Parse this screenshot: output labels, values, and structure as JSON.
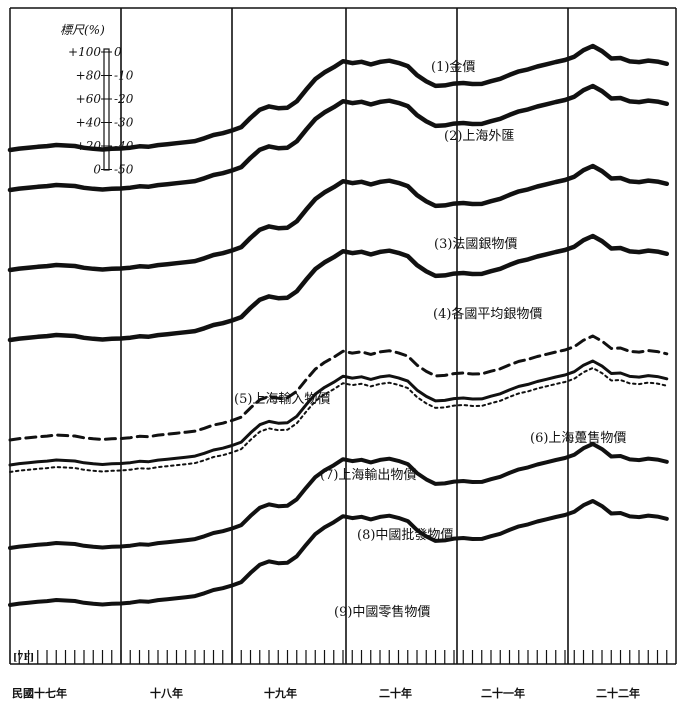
{
  "chart_data": {
    "type": "line",
    "scale": {
      "title": "標尺(%)",
      "left_ticks": [
        "+100",
        "+80",
        "+60",
        "+40",
        "+20",
        "0"
      ],
      "right_ticks": [
        "0",
        "-10",
        "-20",
        "-30",
        "-40",
        "-50"
      ]
    },
    "year_labels": [
      "民國十七年",
      "十八年",
      "十九年",
      "二十年",
      "二十一年",
      "二十二年"
    ],
    "corner_label": "[7F]",
    "x": [
      0,
      1,
      2,
      3,
      4,
      5,
      6,
      7,
      8,
      9,
      10,
      11,
      12,
      13,
      14,
      15,
      16,
      17,
      18,
      19,
      20,
      21,
      22,
      23,
      24,
      25,
      26,
      27,
      28,
      29,
      30,
      31,
      32,
      33,
      34,
      35,
      36,
      37,
      38,
      39,
      40,
      41,
      42,
      43,
      44,
      45,
      46,
      47,
      48,
      49,
      50,
      51,
      52,
      53,
      54,
      55,
      56,
      57,
      58,
      59,
      60,
      61,
      62,
      63,
      64,
      65,
      66,
      67,
      68,
      69,
      70,
      71
    ],
    "series": [
      {
        "name": "(1)金價",
        "style": "solid",
        "values": [
          0.0,
          1.3,
          2.0,
          2.9,
          3.6,
          4.6,
          4.1,
          3.7,
          2.0,
          1.1,
          0.5,
          1.1,
          1.4,
          2.1,
          3.4,
          3.0,
          4.5,
          5.3,
          6.2,
          7.2,
          8.2,
          10.7,
          13.8,
          15.4,
          17.9,
          21.0,
          29.5,
          37.0,
          40.0,
          38.4,
          38.8,
          44.7,
          55.2,
          65.1,
          71.3,
          76.0,
          81.5,
          79.8,
          81.0,
          78.6,
          80.9,
          82.0,
          80.0,
          77.0,
          68.8,
          63.0,
          58.9,
          59.3,
          61.0,
          61.5,
          60.6,
          60.7,
          63.2,
          65.4,
          69.0,
          72.2,
          74.0,
          76.7,
          78.7,
          80.8,
          82.6,
          85.7,
          91.6,
          95.5,
          90.8,
          84.0,
          84.5,
          81.4,
          80.7,
          82.1,
          81.2,
          79.2
        ]
      },
      {
        "name": "(2)上海外匯",
        "style": "solid",
        "values": [
          0.0,
          1.3,
          2.0,
          2.9,
          3.6,
          4.6,
          4.1,
          3.7,
          2.0,
          1.1,
          0.5,
          1.1,
          1.4,
          2.1,
          3.4,
          3.0,
          4.5,
          5.3,
          6.2,
          7.2,
          8.2,
          10.7,
          13.8,
          15.4,
          17.9,
          21.0,
          29.5,
          37.0,
          40.0,
          38.4,
          38.8,
          44.7,
          55.2,
          65.1,
          71.3,
          76.0,
          81.5,
          79.8,
          81.0,
          78.6,
          80.9,
          82.0,
          80.0,
          77.0,
          68.8,
          63.0,
          58.9,
          59.3,
          61.0,
          61.5,
          60.6,
          60.7,
          63.2,
          65.4,
          69.0,
          72.2,
          74.0,
          76.7,
          78.7,
          80.8,
          82.6,
          85.7,
          91.6,
          95.5,
          90.8,
          84.0,
          84.5,
          81.4,
          80.7,
          82.1,
          81.2,
          79.2
        ]
      },
      {
        "name": "(3)法國銀物價",
        "style": "solid",
        "values": [
          0.0,
          1.3,
          2.0,
          2.9,
          3.6,
          4.6,
          4.1,
          3.7,
          2.0,
          1.1,
          0.5,
          1.1,
          1.4,
          2.1,
          3.4,
          3.0,
          4.5,
          5.3,
          6.2,
          7.2,
          8.2,
          10.7,
          13.8,
          15.4,
          17.9,
          21.0,
          29.5,
          37.0,
          40.0,
          38.4,
          38.8,
          44.7,
          55.2,
          65.1,
          71.3,
          76.0,
          81.5,
          79.8,
          81.0,
          78.6,
          80.9,
          82.0,
          80.0,
          77.0,
          68.8,
          63.0,
          58.9,
          59.3,
          61.0,
          61.5,
          60.6,
          60.7,
          63.2,
          65.4,
          69.0,
          72.2,
          74.0,
          76.7,
          78.7,
          80.8,
          82.6,
          85.7,
          91.6,
          95.5,
          90.8,
          84.0,
          84.5,
          81.4,
          80.7,
          82.1,
          81.2,
          79.2
        ]
      },
      {
        "name": "(4)各國平均銀物價",
        "style": "solid",
        "values": [
          0.0,
          1.3,
          2.0,
          2.9,
          3.6,
          4.6,
          4.1,
          3.7,
          2.0,
          1.1,
          0.5,
          1.1,
          1.4,
          2.1,
          3.4,
          3.0,
          4.5,
          5.3,
          6.2,
          7.2,
          8.2,
          10.7,
          13.8,
          15.4,
          17.9,
          21.0,
          29.5,
          37.0,
          40.0,
          38.4,
          38.8,
          44.7,
          55.2,
          65.1,
          71.3,
          76.0,
          81.5,
          79.8,
          81.0,
          78.6,
          80.9,
          82.0,
          80.0,
          77.0,
          68.8,
          63.0,
          58.9,
          59.3,
          61.0,
          61.5,
          60.6,
          60.7,
          63.2,
          65.4,
          69.0,
          72.2,
          74.0,
          76.7,
          78.7,
          80.8,
          82.6,
          85.7,
          91.6,
          95.5,
          90.8,
          84.0,
          84.5,
          81.4,
          80.7,
          82.1,
          81.2,
          79.2
        ]
      },
      {
        "name": "(5)上海輸入物價",
        "style": "dashed",
        "values": [
          0.0,
          1.3,
          2.0,
          2.9,
          3.6,
          4.6,
          4.1,
          3.7,
          2.0,
          1.1,
          0.5,
          1.1,
          1.4,
          2.1,
          3.4,
          3.0,
          4.5,
          5.3,
          6.2,
          7.2,
          8.2,
          10.7,
          13.8,
          15.4,
          17.9,
          21.0,
          29.5,
          37.0,
          40.0,
          38.4,
          38.8,
          44.7,
          55.2,
          65.1,
          71.3,
          76.0,
          81.5,
          79.8,
          81.0,
          78.6,
          80.9,
          82.0,
          80.0,
          77.0,
          68.8,
          63.0,
          58.9,
          59.3,
          61.0,
          61.5,
          60.6,
          60.7,
          63.2,
          65.4,
          69.0,
          72.2,
          74.0,
          76.7,
          78.7,
          80.8,
          82.6,
          85.7,
          91.6,
          95.5,
          90.8,
          84.0,
          84.5,
          81.4,
          80.7,
          82.1,
          81.2,
          79.2
        ]
      },
      {
        "name": "(6)上海躉售物價",
        "style": "solid",
        "values": [
          0.0,
          1.3,
          2.0,
          2.9,
          3.6,
          4.6,
          4.1,
          3.7,
          2.0,
          1.1,
          0.5,
          1.1,
          1.4,
          2.1,
          3.4,
          3.0,
          4.5,
          5.3,
          6.2,
          7.2,
          8.2,
          10.7,
          13.8,
          15.4,
          17.9,
          21.0,
          29.5,
          37.0,
          40.0,
          38.4,
          38.8,
          44.7,
          55.2,
          65.1,
          71.3,
          76.0,
          81.5,
          79.8,
          81.0,
          78.6,
          80.9,
          82.0,
          80.0,
          77.0,
          68.8,
          63.0,
          58.9,
          59.3,
          61.0,
          61.5,
          60.6,
          60.7,
          63.2,
          65.4,
          69.0,
          72.2,
          74.0,
          76.7,
          78.7,
          80.8,
          82.6,
          85.7,
          91.6,
          95.5,
          90.8,
          84.0,
          84.5,
          81.4,
          80.7,
          82.1,
          81.2,
          79.2
        ]
      },
      {
        "name": "(7)上海輸出物價",
        "style": "dotted",
        "values": [
          0.0,
          1.3,
          2.0,
          2.9,
          3.6,
          4.6,
          4.1,
          3.7,
          2.0,
          1.1,
          0.5,
          1.1,
          1.4,
          2.1,
          3.4,
          3.0,
          4.5,
          5.3,
          6.2,
          7.2,
          8.2,
          10.7,
          13.8,
          15.4,
          17.9,
          21.0,
          29.5,
          37.0,
          40.0,
          38.4,
          38.8,
          44.7,
          55.2,
          65.1,
          71.3,
          76.0,
          81.5,
          79.8,
          81.0,
          78.6,
          80.9,
          82.0,
          80.0,
          77.0,
          68.8,
          63.0,
          58.9,
          59.3,
          61.0,
          61.5,
          60.6,
          60.7,
          63.2,
          65.4,
          69.0,
          72.2,
          74.0,
          76.7,
          78.7,
          80.8,
          82.6,
          85.7,
          91.6,
          95.5,
          90.8,
          84.0,
          84.5,
          81.4,
          80.7,
          82.1,
          81.2,
          79.2
        ]
      },
      {
        "name": "(8)中國批發物價",
        "style": "solid",
        "values": [
          0.0,
          1.3,
          2.0,
          2.9,
          3.6,
          4.6,
          4.1,
          3.7,
          2.0,
          1.1,
          0.5,
          1.1,
          1.4,
          2.1,
          3.4,
          3.0,
          4.5,
          5.3,
          6.2,
          7.2,
          8.2,
          10.7,
          13.8,
          15.4,
          17.9,
          21.0,
          29.5,
          37.0,
          40.0,
          38.4,
          38.8,
          44.7,
          55.2,
          65.1,
          71.3,
          76.0,
          81.5,
          79.8,
          81.0,
          78.6,
          80.9,
          82.0,
          80.0,
          77.0,
          68.8,
          63.0,
          58.9,
          59.3,
          61.0,
          61.5,
          60.6,
          60.7,
          63.2,
          65.4,
          69.0,
          72.2,
          74.0,
          76.7,
          78.7,
          80.8,
          82.6,
          85.7,
          91.6,
          95.5,
          90.8,
          84.0,
          84.5,
          81.4,
          80.7,
          82.1,
          81.2,
          79.2
        ]
      },
      {
        "name": "(9)中國零售物價",
        "style": "solid",
        "values": [
          0.0,
          1.3,
          2.0,
          2.9,
          3.6,
          4.6,
          4.1,
          3.7,
          2.0,
          1.1,
          0.5,
          1.1,
          1.4,
          2.1,
          3.4,
          3.0,
          4.5,
          5.3,
          6.2,
          7.2,
          8.2,
          10.7,
          13.8,
          15.4,
          17.9,
          21.0,
          29.5,
          37.0,
          40.0,
          38.4,
          38.8,
          44.7,
          55.2,
          65.1,
          71.3,
          76.0,
          81.5,
          79.8,
          81.0,
          78.6,
          80.9,
          82.0,
          80.0,
          77.0,
          68.8,
          63.0,
          58.9,
          59.3,
          61.0,
          61.5,
          60.6,
          60.7,
          63.2,
          65.4,
          69.0,
          72.2,
          74.0,
          76.7,
          78.7,
          80.8,
          82.6,
          85.7,
          91.6,
          95.5,
          90.8,
          84.0,
          84.5,
          81.4,
          80.7,
          82.1,
          81.2,
          79.2
        ]
      }
    ]
  }
}
